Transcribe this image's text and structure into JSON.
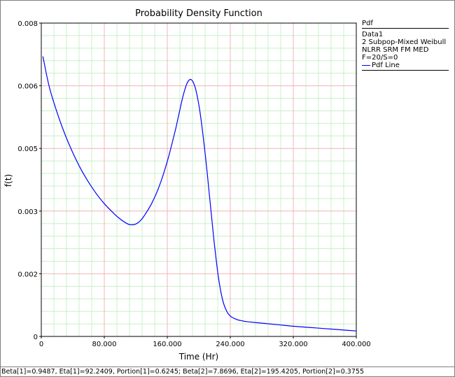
{
  "chart_data": {
    "type": "line",
    "title": "Probability Density Function",
    "xlabel": "Time (Hr)",
    "ylabel": "f(t)",
    "xlim": [
      0,
      400
    ],
    "ylim": [
      0,
      0.008
    ],
    "x_ticks": [
      "0",
      "80.000",
      "160.000",
      "240.000",
      "320.000",
      "400.000"
    ],
    "y_ticks": [
      "0",
      "0.002",
      "0.003",
      "0.005",
      "0.006",
      "0.008"
    ],
    "grid": true,
    "legend": {
      "header": "Pdf",
      "lines": [
        "Data1",
        "2 Subpop-Mixed Weibull",
        "NLRR SRM FM MED",
        "F=20/S=0"
      ],
      "entry": "Pdf Line",
      "placement": "right"
    },
    "series": [
      {
        "name": "Pdf Line",
        "color": "#0000ff",
        "x": [
          2,
          10,
          20,
          30,
          40,
          50,
          60,
          70,
          80,
          90,
          100,
          110,
          115,
          120,
          125,
          130,
          140,
          150,
          160,
          170,
          175,
          180,
          185,
          190,
          195,
          200,
          205,
          210,
          215,
          220,
          225,
          230,
          235,
          240,
          245,
          250,
          255,
          260,
          280,
          300,
          320,
          340,
          360,
          380,
          400
        ],
        "y": [
          0.00715,
          0.00638,
          0.00572,
          0.00516,
          0.00469,
          0.00428,
          0.00394,
          0.00364,
          0.00339,
          0.00318,
          0.003,
          0.00287,
          0.00285,
          0.00287,
          0.00294,
          0.00306,
          0.00339,
          0.00385,
          0.00447,
          0.00525,
          0.0057,
          0.00614,
          0.00646,
          0.00656,
          0.00638,
          0.00592,
          0.0052,
          0.0043,
          0.0033,
          0.00232,
          0.0015,
          0.00095,
          0.00066,
          0.00052,
          0.00046,
          0.00042,
          0.0004,
          0.00038,
          0.00034,
          0.0003,
          0.00026,
          0.00023,
          0.0002,
          0.00017,
          0.00014
        ]
      }
    ]
  },
  "footer_text": "Beta[1]=0.9487, Eta[1]=92.2409, Portion[1]=0.6245; Beta[2]=7.8696, Eta[2]=195.4205, Portion[2]=0.3755"
}
